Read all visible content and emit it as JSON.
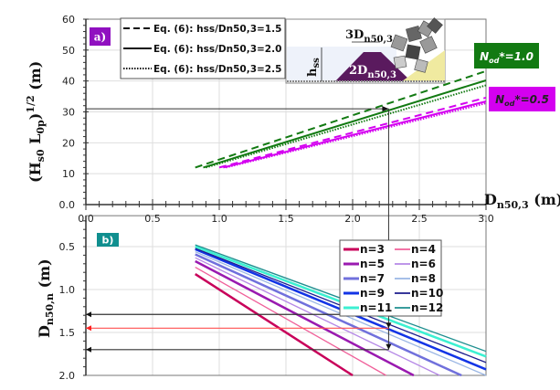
{
  "chart_data": [
    {
      "type": "line",
      "panel_label": "a)",
      "ylabel": "(Hs0 L0p)1/2 (m)",
      "ylabel_parts": {
        "main": "(H",
        "sub1": "s0",
        "mid": " L",
        "sub2": "0p",
        "close": ")",
        "sup": "1/2",
        "unit": " (m)"
      },
      "xlabel": "Dn50,3 (m)",
      "xlabel_parts": {
        "main": "D",
        "sub": "n50,3",
        "unit": " (m)"
      },
      "xlim": [
        0,
        3.0
      ],
      "ylim": [
        0,
        60
      ],
      "x_ticks": [
        "0.0",
        "0.5",
        "1.0",
        "1.5",
        "2.0",
        "2.5",
        "3.0"
      ],
      "y_ticks": [
        "0.0",
        "10",
        "20",
        "30",
        "40",
        "50",
        "60"
      ],
      "grid": true,
      "legend": [
        "Eq. (6): hss/Dn50,3=1.5",
        "Eq. (6): hss/Dn50,3=2.0",
        "Eq. (6): hss/Dn50,3=2.5"
      ],
      "legend_placement": "top-left",
      "group_labels": [
        {
          "text": "Nod*=1.0",
          "main": "N",
          "sub": "od",
          "rest": "*=1.0",
          "color": "#127a12"
        },
        {
          "text": "Nod*=0.5",
          "main": "N",
          "sub": "od",
          "rest": "*=0.5",
          "color": "#d400f0"
        }
      ],
      "series": [
        {
          "group": "Nod*=1.0",
          "style": "dashed",
          "color": "#127a12",
          "points": [
            [
              0.82,
              12
            ],
            [
              3.0,
              43.2
            ]
          ]
        },
        {
          "group": "Nod*=1.0",
          "style": "solid",
          "color": "#127a12",
          "points": [
            [
              0.88,
              12
            ],
            [
              3.0,
              40.2
            ]
          ]
        },
        {
          "group": "Nod*=1.0",
          "style": "dotted",
          "color": "#127a12",
          "points": [
            [
              0.9,
              12
            ],
            [
              3.0,
              38.6
            ]
          ]
        },
        {
          "group": "Nod*=0.5",
          "style": "dashed",
          "color": "#d400f0",
          "points": [
            [
              1.0,
              12
            ],
            [
              3.0,
              34.6
            ]
          ]
        },
        {
          "group": "Nod*=0.5",
          "style": "solid",
          "color": "#d400f0",
          "points": [
            [
              1.03,
              12
            ],
            [
              3.0,
              33.4
            ]
          ]
        },
        {
          "group": "Nod*=0.5",
          "style": "dotted",
          "color": "#d400f0",
          "points": [
            [
              1.05,
              12
            ],
            [
              3.0,
              32.8
            ]
          ]
        }
      ],
      "guide": {
        "y": 31,
        "x": 2.27
      },
      "inset": {
        "top_label": "3Dn50,3",
        "top_main": "3D",
        "top_sub": "n50,3",
        "mid_label": "2Dn50,3",
        "mid_main": "2D",
        "mid_sub": "n50,3",
        "side_label": "hss",
        "side_main": "h",
        "side_sub": "ss"
      }
    },
    {
      "type": "line",
      "panel_label": "b)",
      "ylabel": "Dn50,n (m)",
      "ylabel_parts": {
        "main": "D",
        "sub": "n50,n",
        "unit": " (m)"
      },
      "xlim": [
        0,
        3.0
      ],
      "ylim": [
        0.14,
        2.0
      ],
      "y_reversed": true,
      "y_ticks": [
        "0.5",
        "1.0",
        "1.5",
        "2.0"
      ],
      "grid": true,
      "legend_placement": "right",
      "series": [
        {
          "name": "n=3",
          "color": "#c8005a",
          "width": 2.5,
          "points": [
            [
              0.82,
              0.82
            ],
            [
              3.0,
              3.0
            ]
          ]
        },
        {
          "name": "n=4",
          "color": "#f0609a",
          "width": 1.3,
          "points": [
            [
              0.82,
              0.74
            ],
            [
              3.0,
              2.66
            ]
          ]
        },
        {
          "name": "n=5",
          "color": "#9a1ab0",
          "width": 2.5,
          "points": [
            [
              0.82,
              0.67
            ],
            [
              3.0,
              2.44
            ]
          ]
        },
        {
          "name": "n=6",
          "color": "#b588e6",
          "width": 1.3,
          "points": [
            [
              0.82,
              0.63
            ],
            [
              3.0,
              2.26
            ]
          ]
        },
        {
          "name": "n=7",
          "color": "#7070dc",
          "width": 2.5,
          "points": [
            [
              0.82,
              0.59
            ],
            [
              3.0,
              2.13
            ]
          ]
        },
        {
          "name": "n=8",
          "color": "#9ab6e4",
          "width": 1.3,
          "points": [
            [
              0.82,
              0.56
            ],
            [
              3.0,
              2.0
            ]
          ]
        },
        {
          "name": "n=9",
          "color": "#1234e6",
          "width": 2.5,
          "points": [
            [
              0.82,
              0.53
            ],
            [
              3.0,
              1.93
            ]
          ]
        },
        {
          "name": "n=10",
          "color": "#1c1c8c",
          "width": 1.3,
          "points": [
            [
              0.82,
              0.52
            ],
            [
              3.0,
              1.85
            ]
          ]
        },
        {
          "name": "n=11",
          "color": "#3cf0d2",
          "width": 2.5,
          "points": [
            [
              0.82,
              0.5
            ],
            [
              3.0,
              1.78
            ]
          ]
        },
        {
          "name": "n=12",
          "color": "#1e8f8f",
          "width": 1.3,
          "points": [
            [
              0.82,
              0.48
            ],
            [
              3.0,
              1.72
            ]
          ]
        }
      ],
      "guides": [
        {
          "y": 1.29,
          "color": "#333333"
        },
        {
          "y": 1.45,
          "color": "#ff5050"
        },
        {
          "y": 1.7,
          "color": "#333333"
        }
      ]
    }
  ],
  "colors": {
    "panel_a": "#9010c0",
    "panel_b": "#108f8f"
  }
}
